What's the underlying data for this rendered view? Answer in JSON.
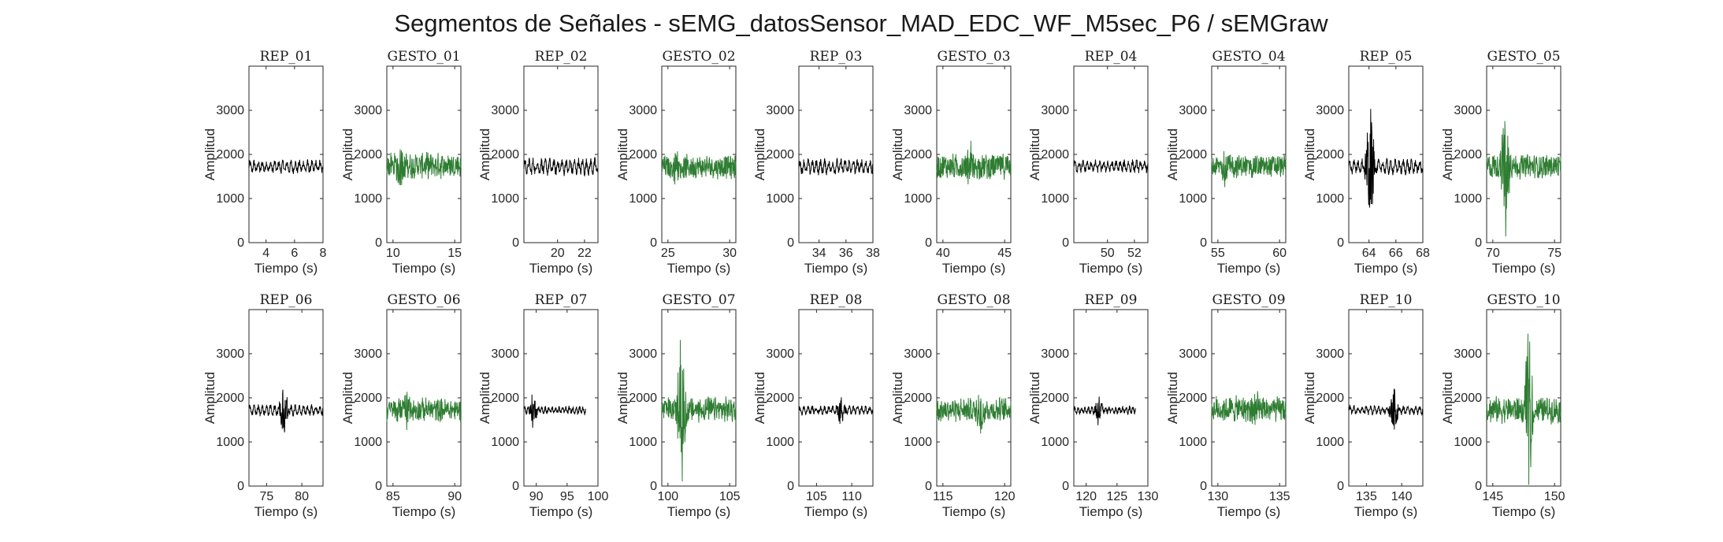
{
  "figure": {
    "title": "Segmentos de Señales - sEMG_datosSensor_MAD_EDC_WF_M5sec_P6 / sEMGraw"
  },
  "colors": {
    "rep": "#000000",
    "gesto": "#2e7d32"
  },
  "chart_data": [
    {
      "type": "line",
      "title": "REP_01",
      "xlabel": "Tiempo (s)",
      "ylabel": "Amplitud",
      "ylim": [
        0,
        4000
      ],
      "xlim": [
        2.8,
        8
      ],
      "xticks": [
        4,
        6,
        8
      ],
      "yticks": [
        0,
        1000,
        2000,
        3000
      ],
      "color": "rep",
      "series": [
        {
          "name": "REP_01",
          "x_range": [
            2.8,
            8
          ],
          "center": 1720,
          "amp": 170,
          "peak": 200,
          "style": "rep"
        }
      ]
    },
    {
      "type": "line",
      "title": "GESTO_01",
      "xlabel": "Tiempo (s)",
      "ylabel": "Amplitud",
      "ylim": [
        0,
        4000
      ],
      "xlim": [
        9.5,
        15.5
      ],
      "xticks": [
        10,
        15
      ],
      "yticks": [
        0,
        1000,
        2000,
        3000
      ],
      "color": "gesto",
      "series": [
        {
          "name": "GESTO_01",
          "x_range": [
            9.5,
            15.5
          ],
          "center": 1750,
          "amp": 250,
          "peak": 900,
          "style": "gesto"
        }
      ]
    },
    {
      "type": "line",
      "title": "REP_02",
      "xlabel": "Tiempo (s)",
      "ylabel": "Amplitud",
      "ylim": [
        0,
        4000
      ],
      "xlim": [
        17.5,
        23
      ],
      "xticks": [
        20,
        22
      ],
      "yticks": [
        0,
        1000,
        2000,
        3000
      ],
      "color": "rep",
      "series": [
        {
          "name": "REP_02",
          "x_range": [
            17.5,
            23
          ],
          "center": 1720,
          "amp": 220,
          "peak": 260,
          "style": "rep"
        }
      ]
    },
    {
      "type": "line",
      "title": "GESTO_02",
      "xlabel": "Tiempo (s)",
      "ylabel": "Amplitud",
      "ylim": [
        0,
        4000
      ],
      "xlim": [
        24.5,
        30.5
      ],
      "xticks": [
        25,
        30
      ],
      "yticks": [
        0,
        1000,
        2000,
        3000
      ],
      "color": "gesto",
      "series": [
        {
          "name": "GESTO_02",
          "x_range": [
            24.5,
            30.5
          ],
          "center": 1720,
          "amp": 230,
          "peak": 550,
          "style": "gesto"
        }
      ]
    },
    {
      "type": "line",
      "title": "REP_03",
      "xlabel": "Tiempo (s)",
      "ylabel": "Amplitud",
      "ylim": [
        0,
        4000
      ],
      "xlim": [
        32.5,
        38
      ],
      "xticks": [
        34,
        36,
        38
      ],
      "yticks": [
        0,
        1000,
        2000,
        3000
      ],
      "color": "rep",
      "series": [
        {
          "name": "REP_03",
          "x_range": [
            32.5,
            38
          ],
          "center": 1720,
          "amp": 200,
          "peak": 230,
          "style": "rep"
        }
      ]
    },
    {
      "type": "line",
      "title": "GESTO_03",
      "xlabel": "Tiempo (s)",
      "ylabel": "Amplitud",
      "ylim": [
        0,
        4000
      ],
      "xlim": [
        39.5,
        45.5
      ],
      "xticks": [
        40,
        45
      ],
      "yticks": [
        0,
        1000,
        2000,
        3000
      ],
      "color": "gesto",
      "series": [
        {
          "name": "GESTO_03",
          "x_range": [
            39.5,
            45.5
          ],
          "center": 1730,
          "amp": 250,
          "peak": 700,
          "style": "gesto"
        }
      ]
    },
    {
      "type": "line",
      "title": "REP_04",
      "xlabel": "Tiempo (s)",
      "ylabel": "Amplitud",
      "ylim": [
        0,
        4000
      ],
      "xlim": [
        47.5,
        53
      ],
      "xticks": [
        50,
        52
      ],
      "yticks": [
        0,
        1000,
        2000,
        3000
      ],
      "color": "rep",
      "series": [
        {
          "name": "REP_04",
          "x_range": [
            47.5,
            53
          ],
          "center": 1730,
          "amp": 160,
          "peak": 190,
          "style": "rep"
        }
      ]
    },
    {
      "type": "line",
      "title": "GESTO_04",
      "xlabel": "Tiempo (s)",
      "ylabel": "Amplitud",
      "ylim": [
        0,
        4000
      ],
      "xlim": [
        54.5,
        60.5
      ],
      "xticks": [
        55,
        60
      ],
      "yticks": [
        0,
        1000,
        2000,
        3000
      ],
      "color": "gesto",
      "series": [
        {
          "name": "GESTO_04",
          "x_range": [
            54.5,
            60.5
          ],
          "center": 1730,
          "amp": 230,
          "peak": 550,
          "style": "gesto"
        }
      ]
    },
    {
      "type": "line",
      "title": "REP_05",
      "xlabel": "Tiempo (s)",
      "ylabel": "Amplitud",
      "ylim": [
        0,
        4000
      ],
      "xlim": [
        62.5,
        68
      ],
      "xticks": [
        64,
        66,
        68
      ],
      "yticks": [
        0,
        1000,
        2000,
        3000
      ],
      "color": "rep",
      "series": [
        {
          "name": "REP_05",
          "x_range": [
            62.5,
            68
          ],
          "center": 1720,
          "amp": 200,
          "peak": 1650,
          "style": "rep"
        }
      ]
    },
    {
      "type": "line",
      "title": "GESTO_05",
      "xlabel": "Tiempo (s)",
      "ylabel": "Amplitud",
      "ylim": [
        0,
        4000
      ],
      "xlim": [
        69.5,
        75.5
      ],
      "xticks": [
        70,
        75
      ],
      "yticks": [
        0,
        1000,
        2000,
        3000
      ],
      "color": "gesto",
      "series": [
        {
          "name": "GESTO_05",
          "x_range": [
            69.5,
            75.5
          ],
          "center": 1730,
          "amp": 250,
          "peak": 1700,
          "style": "gesto"
        }
      ]
    },
    {
      "type": "line",
      "title": "REP_06",
      "xlabel": "Tiempo (s)",
      "ylabel": "Amplitud",
      "ylim": [
        0,
        4000
      ],
      "xlim": [
        72.5,
        83
      ],
      "xticks": [
        75,
        80
      ],
      "yticks": [
        0,
        1000,
        2000,
        3000
      ],
      "color": "rep",
      "series": [
        {
          "name": "REP_06",
          "x_range": [
            72.5,
            83
          ],
          "center": 1720,
          "amp": 140,
          "peak": 750,
          "style": "rep"
        }
      ]
    },
    {
      "type": "line",
      "title": "GESTO_06",
      "xlabel": "Tiempo (s)",
      "ylabel": "Amplitud",
      "ylim": [
        0,
        4000
      ],
      "xlim": [
        84.5,
        90.5
      ],
      "xticks": [
        85,
        90
      ],
      "yticks": [
        0,
        1000,
        2000,
        3000
      ],
      "color": "gesto",
      "series": [
        {
          "name": "GESTO_06",
          "x_range": [
            84.5,
            90.5
          ],
          "center": 1730,
          "amp": 230,
          "peak": 550,
          "style": "gesto"
        }
      ]
    },
    {
      "type": "line",
      "title": "REP_07",
      "xlabel": "Tiempo (s)",
      "ylabel": "Amplitud",
      "ylim": [
        0,
        4000
      ],
      "xlim": [
        88,
        100
      ],
      "xticks": [
        90,
        95,
        100
      ],
      "yticks": [
        0,
        1000,
        2000,
        3000
      ],
      "color": "rep",
      "series": [
        {
          "name": "REP_07",
          "x_range": [
            88,
            98
          ],
          "center": 1720,
          "amp": 100,
          "peak": 500,
          "style": "rep"
        }
      ]
    },
    {
      "type": "line",
      "title": "GESTO_07",
      "xlabel": "Tiempo (s)",
      "ylabel": "Amplitud",
      "ylim": [
        0,
        4000
      ],
      "xlim": [
        99.5,
        105.5
      ],
      "xticks": [
        100,
        105
      ],
      "yticks": [
        0,
        1000,
        2000,
        3000
      ],
      "color": "gesto",
      "series": [
        {
          "name": "GESTO_07",
          "x_range": [
            99.5,
            105.5
          ],
          "center": 1730,
          "amp": 250,
          "peak": 2100,
          "style": "gesto"
        }
      ]
    },
    {
      "type": "line",
      "title": "REP_08",
      "xlabel": "Tiempo (s)",
      "ylabel": "Amplitud",
      "ylim": [
        0,
        4000
      ],
      "xlim": [
        102.5,
        113
      ],
      "xticks": [
        105,
        110
      ],
      "yticks": [
        0,
        1000,
        2000,
        3000
      ],
      "color": "rep",
      "series": [
        {
          "name": "REP_08",
          "x_range": [
            102.5,
            113
          ],
          "center": 1720,
          "amp": 110,
          "peak": 450,
          "style": "rep"
        }
      ]
    },
    {
      "type": "line",
      "title": "GESTO_08",
      "xlabel": "Tiempo (s)",
      "ylabel": "Amplitud",
      "ylim": [
        0,
        4000
      ],
      "xlim": [
        114.5,
        120.5
      ],
      "xticks": [
        115,
        120
      ],
      "yticks": [
        0,
        1000,
        2000,
        3000
      ],
      "color": "gesto",
      "series": [
        {
          "name": "GESTO_08",
          "x_range": [
            114.5,
            120.5
          ],
          "center": 1730,
          "amp": 240,
          "peak": 650,
          "style": "gesto"
        }
      ]
    },
    {
      "type": "line",
      "title": "REP_09",
      "xlabel": "Tiempo (s)",
      "ylabel": "Amplitud",
      "ylim": [
        0,
        4000
      ],
      "xlim": [
        118,
        130
      ],
      "xticks": [
        120,
        125,
        130
      ],
      "yticks": [
        0,
        1000,
        2000,
        3000
      ],
      "color": "rep",
      "series": [
        {
          "name": "REP_09",
          "x_range": [
            118,
            128
          ],
          "center": 1720,
          "amp": 100,
          "peak": 500,
          "style": "rep"
        }
      ]
    },
    {
      "type": "line",
      "title": "GESTO_09",
      "xlabel": "Tiempo (s)",
      "ylabel": "Amplitud",
      "ylim": [
        0,
        4000
      ],
      "xlim": [
        129.5,
        135.5
      ],
      "xticks": [
        130,
        135
      ],
      "yticks": [
        0,
        1000,
        2000,
        3000
      ],
      "color": "gesto",
      "series": [
        {
          "name": "GESTO_09",
          "x_range": [
            129.5,
            135.5
          ],
          "center": 1740,
          "amp": 260,
          "peak": 800,
          "style": "gesto"
        }
      ]
    },
    {
      "type": "line",
      "title": "REP_10",
      "xlabel": "Tiempo (s)",
      "ylabel": "Amplitud",
      "ylim": [
        0,
        4000
      ],
      "xlim": [
        132.5,
        143
      ],
      "xticks": [
        135,
        140
      ],
      "yticks": [
        0,
        1000,
        2000,
        3000
      ],
      "color": "rep",
      "series": [
        {
          "name": "REP_10",
          "x_range": [
            132.5,
            143
          ],
          "center": 1720,
          "amp": 120,
          "peak": 650,
          "style": "rep"
        }
      ]
    },
    {
      "type": "line",
      "title": "GESTO_10",
      "xlabel": "Tiempo (s)",
      "ylabel": "Amplitud",
      "ylim": [
        0,
        4000
      ],
      "xlim": [
        144.5,
        150.5
      ],
      "xticks": [
        145,
        150
      ],
      "yticks": [
        0,
        1000,
        2000,
        3000
      ],
      "color": "gesto",
      "series": [
        {
          "name": "GESTO_10",
          "x_range": [
            144.5,
            150.5
          ],
          "center": 1730,
          "amp": 260,
          "peak": 2100,
          "style": "gesto"
        }
      ]
    }
  ]
}
